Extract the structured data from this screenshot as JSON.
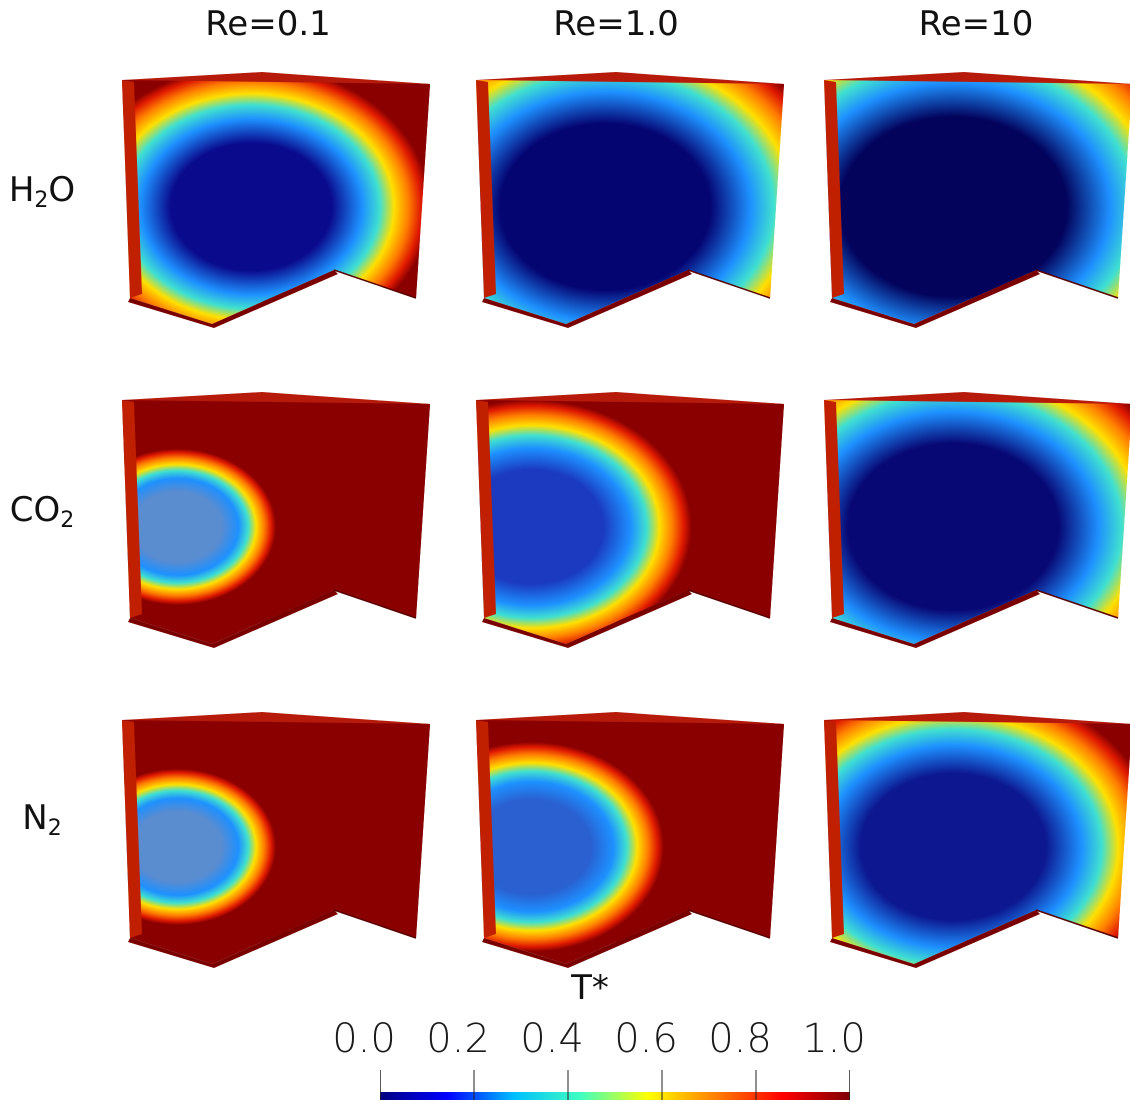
{
  "columns": [
    {
      "label": "Re=0.1"
    },
    {
      "label": "Re=1.0"
    },
    {
      "label": "Re=10"
    }
  ],
  "rows": [
    {
      "base": "H",
      "sub": "2",
      "tail": "O"
    },
    {
      "base": "CO",
      "sub": "2",
      "tail": ""
    },
    {
      "base": "N",
      "sub": "2",
      "tail": ""
    }
  ],
  "colorbar": {
    "title": "T*",
    "ticks": [
      "0.0",
      "0.2",
      "0.4",
      "0.6",
      "0.8",
      "1.0"
    ],
    "range": [
      0.0,
      1.0
    ],
    "colormap": "jet",
    "colors": [
      "#00007f",
      "#0000ff",
      "#00bfff",
      "#40ffbf",
      "#ffff00",
      "#ff7f00",
      "#ff0000",
      "#7f0000"
    ]
  },
  "panels": [
    {
      "row": 0,
      "col": 0,
      "cold_extent": 0.55,
      "cold_color": "#0a0a8c"
    },
    {
      "row": 0,
      "col": 1,
      "cold_extent": 0.85,
      "cold_color": "#050572"
    },
    {
      "row": 0,
      "col": 2,
      "cold_extent": 0.95,
      "cold_color": "#03035c"
    },
    {
      "row": 1,
      "col": 0,
      "cold_extent": 0.12,
      "cold_color": "#5a8cd0"
    },
    {
      "row": 1,
      "col": 1,
      "cold_extent": 0.45,
      "cold_color": "#1b3ac0"
    },
    {
      "row": 1,
      "col": 2,
      "cold_extent": 0.85,
      "cold_color": "#080874"
    },
    {
      "row": 2,
      "col": 0,
      "cold_extent": 0.12,
      "cold_color": "#5a8cd0"
    },
    {
      "row": 2,
      "col": 1,
      "cold_extent": 0.3,
      "cold_color": "#2a60d0"
    },
    {
      "row": 2,
      "col": 2,
      "cold_extent": 0.7,
      "cold_color": "#0d1890"
    }
  ]
}
